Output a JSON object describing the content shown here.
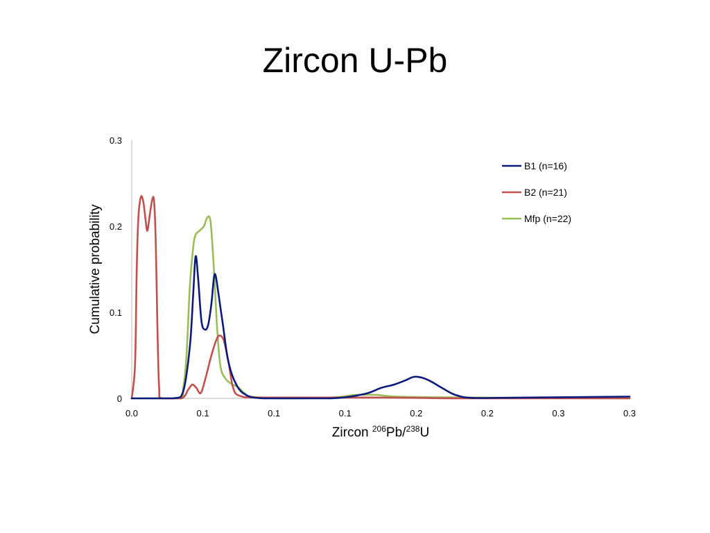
{
  "slide": {
    "title": "Zircon U-Pb"
  },
  "chart_data": {
    "type": "line",
    "title": "",
    "xlabel_prefix": "Zircon ",
    "xlabel_sup1": "206",
    "xlabel_mid": "Pb/",
    "xlabel_sup2": "238",
    "xlabel_suffix": "U",
    "ylabel": "Cumulative probability",
    "x_ticks": [
      "0.0",
      "0.1",
      "0.1",
      "0.1",
      "0.2",
      "0.2",
      "0.3",
      "0.3"
    ],
    "y_ticks": [
      "0",
      "0.1",
      "0.2",
      "0.3"
    ],
    "xlim": [
      0,
      0.3
    ],
    "ylim": [
      0,
      0.3
    ],
    "grid": false,
    "legend_position": "top-right",
    "series": [
      {
        "name": "B1 (n=16)",
        "color": "#0b1a7a",
        "points": [
          [
            0.0,
            0
          ],
          [
            0.025,
            0
          ],
          [
            0.031,
            0.008
          ],
          [
            0.035,
            0.06
          ],
          [
            0.037,
            0.12
          ],
          [
            0.0385,
            0.165
          ],
          [
            0.04,
            0.14
          ],
          [
            0.042,
            0.09
          ],
          [
            0.044,
            0.08
          ],
          [
            0.046,
            0.085
          ],
          [
            0.048,
            0.11
          ],
          [
            0.0495,
            0.14
          ],
          [
            0.0505,
            0.143
          ],
          [
            0.052,
            0.125
          ],
          [
            0.055,
            0.085
          ],
          [
            0.058,
            0.045
          ],
          [
            0.062,
            0.02
          ],
          [
            0.068,
            0.005
          ],
          [
            0.08,
            0.0
          ],
          [
            0.12,
            0.0
          ],
          [
            0.14,
            0.005
          ],
          [
            0.15,
            0.012
          ],
          [
            0.158,
            0.016
          ],
          [
            0.165,
            0.021
          ],
          [
            0.17,
            0.025
          ],
          [
            0.175,
            0.024
          ],
          [
            0.18,
            0.02
          ],
          [
            0.188,
            0.011
          ],
          [
            0.195,
            0.004
          ],
          [
            0.205,
            0.0006
          ],
          [
            0.23,
            0.0008
          ],
          [
            0.3,
            0.002
          ]
        ]
      },
      {
        "name": "B2 (n=21)",
        "color": "#c0504d",
        "points": [
          [
            0.0,
            0
          ],
          [
            0.002,
            0.04
          ],
          [
            0.003,
            0.15
          ],
          [
            0.004,
            0.21
          ],
          [
            0.0055,
            0.234
          ],
          [
            0.007,
            0.228
          ],
          [
            0.0085,
            0.205
          ],
          [
            0.0095,
            0.195
          ],
          [
            0.011,
            0.215
          ],
          [
            0.0125,
            0.232
          ],
          [
            0.0135,
            0.228
          ],
          [
            0.0145,
            0.18
          ],
          [
            0.0155,
            0.08
          ],
          [
            0.0165,
            0.012
          ],
          [
            0.018,
            0
          ],
          [
            0.03,
            0
          ],
          [
            0.034,
            0.01
          ],
          [
            0.0365,
            0.016
          ],
          [
            0.039,
            0.012
          ],
          [
            0.0415,
            0.006
          ],
          [
            0.044,
            0.02
          ],
          [
            0.048,
            0.05
          ],
          [
            0.051,
            0.068
          ],
          [
            0.053,
            0.073
          ],
          [
            0.0555,
            0.067
          ],
          [
            0.0585,
            0.04
          ],
          [
            0.061,
            0.013
          ],
          [
            0.065,
            0.003
          ],
          [
            0.08,
            0.001
          ],
          [
            0.15,
            0.001
          ],
          [
            0.2,
            0.0
          ],
          [
            0.3,
            0.0
          ]
        ]
      },
      {
        "name": "Mfp (n=22)",
        "color": "#9bbb59",
        "points": [
          [
            0.0,
            0
          ],
          [
            0.028,
            0
          ],
          [
            0.031,
            0.012
          ],
          [
            0.033,
            0.05
          ],
          [
            0.035,
            0.13
          ],
          [
            0.037,
            0.175
          ],
          [
            0.0385,
            0.19
          ],
          [
            0.041,
            0.195
          ],
          [
            0.0435,
            0.2
          ],
          [
            0.0455,
            0.21
          ],
          [
            0.0475,
            0.205
          ],
          [
            0.0495,
            0.15
          ],
          [
            0.0515,
            0.08
          ],
          [
            0.0535,
            0.037
          ],
          [
            0.0565,
            0.023
          ],
          [
            0.06,
            0.017
          ],
          [
            0.064,
            0.013
          ],
          [
            0.068,
            0.006
          ],
          [
            0.072,
            0.002
          ],
          [
            0.09,
            0.0
          ],
          [
            0.12,
            0.001
          ],
          [
            0.135,
            0.004
          ],
          [
            0.148,
            0.004
          ],
          [
            0.16,
            0.002
          ],
          [
            0.2,
            0.001
          ],
          [
            0.3,
            0.0
          ]
        ]
      }
    ]
  }
}
